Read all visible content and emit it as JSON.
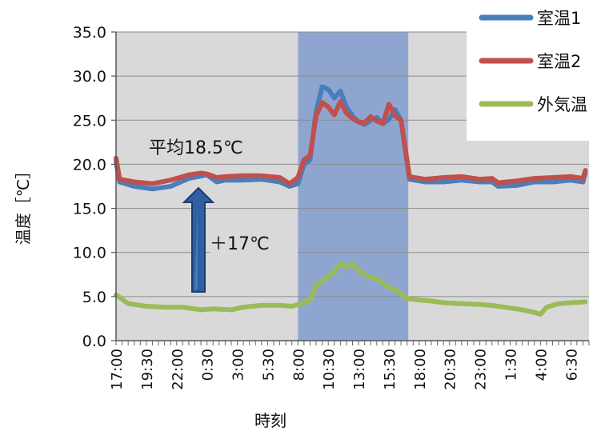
{
  "chart_data": {
    "type": "line",
    "ylabel": "温度［℃］",
    "xlabel": "時刻",
    "ylim": [
      0,
      35
    ],
    "yticks": [
      "0.0",
      "5.0",
      "10.0",
      "15.0",
      "20.0",
      "25.0",
      "30.0",
      "35.0"
    ],
    "grid": true,
    "legend_position": "top-right",
    "x_tick_labels": [
      "17:00",
      "19:30",
      "22:00",
      "0:30",
      "3:00",
      "5:30",
      "8:00",
      "10:30",
      "13:00",
      "15:30",
      "18:00",
      "20:30",
      "23:00",
      "1:30",
      "4:00",
      "6:30"
    ],
    "highlight_band": {
      "from": "8:00",
      "to": "17:00"
    },
    "series": [
      {
        "name": "室温1",
        "color": "#4a7ebb",
        "values": [
          [
            0,
            20.3
          ],
          [
            0.3,
            18
          ],
          [
            1.5,
            17.5
          ],
          [
            3,
            17.2
          ],
          [
            4.5,
            17.5
          ],
          [
            6,
            18.4
          ],
          [
            7.5,
            18.8
          ],
          [
            8.3,
            18.0
          ],
          [
            9,
            18.2
          ],
          [
            10.5,
            18.2
          ],
          [
            12,
            18.3
          ],
          [
            13.5,
            18.0
          ],
          [
            14.3,
            17.5
          ],
          [
            15,
            17.8
          ],
          [
            15.5,
            20
          ],
          [
            16,
            20.5
          ],
          [
            16.5,
            26
          ],
          [
            17,
            28.8
          ],
          [
            17.5,
            28.5
          ],
          [
            18,
            27.5
          ],
          [
            18.5,
            28.3
          ],
          [
            19,
            26.5
          ],
          [
            19.5,
            25.5
          ],
          [
            20,
            24.8
          ],
          [
            20.5,
            24.5
          ],
          [
            21,
            25
          ],
          [
            21.5,
            25.3
          ],
          [
            22,
            24.6
          ],
          [
            22.5,
            25.1
          ],
          [
            23,
            26.2
          ],
          [
            23.5,
            25
          ],
          [
            24.2,
            18.3
          ],
          [
            25.5,
            18
          ],
          [
            27,
            18
          ],
          [
            28.5,
            18.2
          ],
          [
            30,
            18
          ],
          [
            31,
            18
          ],
          [
            31.5,
            17.5
          ],
          [
            33,
            17.6
          ],
          [
            34.5,
            18
          ],
          [
            36,
            18
          ],
          [
            37.5,
            18.2
          ],
          [
            38.5,
            18
          ],
          [
            38.7,
            19
          ]
        ]
      },
      {
        "name": "室温2",
        "color": "#c0504d",
        "values": [
          [
            0,
            20.7
          ],
          [
            0.3,
            18.3
          ],
          [
            1.5,
            18
          ],
          [
            3,
            17.8
          ],
          [
            4.5,
            18.2
          ],
          [
            6,
            18.8
          ],
          [
            7,
            19
          ],
          [
            7.5,
            18.9
          ],
          [
            8.3,
            18.5
          ],
          [
            9,
            18.6
          ],
          [
            10.5,
            18.7
          ],
          [
            12,
            18.7
          ],
          [
            13.5,
            18.5
          ],
          [
            14.3,
            17.8
          ],
          [
            15,
            18.5
          ],
          [
            15.5,
            20.5
          ],
          [
            16,
            21
          ],
          [
            16.5,
            25.5
          ],
          [
            17,
            27
          ],
          [
            17.5,
            26.5
          ],
          [
            18,
            25.6
          ],
          [
            18.5,
            27.1
          ],
          [
            19,
            25.8
          ],
          [
            19.5,
            25.2
          ],
          [
            20,
            24.8
          ],
          [
            20.5,
            24.7
          ],
          [
            21,
            25.4
          ],
          [
            21.5,
            24.9
          ],
          [
            22,
            24.6
          ],
          [
            22.5,
            26.8
          ],
          [
            23,
            25.5
          ],
          [
            23.5,
            25
          ],
          [
            24.2,
            18.6
          ],
          [
            25.5,
            18.3
          ],
          [
            27,
            18.5
          ],
          [
            28.5,
            18.6
          ],
          [
            30,
            18.3
          ],
          [
            31,
            18.4
          ],
          [
            31.5,
            17.9
          ],
          [
            33,
            18.1
          ],
          [
            34.5,
            18.4
          ],
          [
            36,
            18.5
          ],
          [
            37.5,
            18.6
          ],
          [
            38.5,
            18.4
          ],
          [
            38.7,
            19.3
          ]
        ]
      },
      {
        "name": "外気温",
        "color": "#9bbb59",
        "values": [
          [
            0,
            5.2
          ],
          [
            1,
            4.2
          ],
          [
            2.5,
            3.9
          ],
          [
            4,
            3.8
          ],
          [
            5.5,
            3.8
          ],
          [
            7,
            3.5
          ],
          [
            8,
            3.6
          ],
          [
            9.5,
            3.5
          ],
          [
            10.5,
            3.8
          ],
          [
            12,
            4.0
          ],
          [
            13.5,
            4.0
          ],
          [
            14.5,
            3.9
          ],
          [
            15.3,
            4.2
          ],
          [
            16,
            4.6
          ],
          [
            16.5,
            6.3
          ],
          [
            17,
            6.8
          ],
          [
            17.5,
            7.3
          ],
          [
            18,
            7.8
          ],
          [
            18.5,
            8.7
          ],
          [
            19,
            8.4
          ],
          [
            19.5,
            8.7
          ],
          [
            20,
            8.0
          ],
          [
            20.5,
            7.4
          ],
          [
            21,
            7.2
          ],
          [
            21.5,
            7.0
          ],
          [
            22,
            6.5
          ],
          [
            22.5,
            6.0
          ],
          [
            23,
            5.8
          ],
          [
            23.5,
            5.3
          ],
          [
            24,
            4.8
          ],
          [
            25,
            4.6
          ],
          [
            26,
            4.5
          ],
          [
            27,
            4.3
          ],
          [
            28.5,
            4.2
          ],
          [
            30,
            4.1
          ],
          [
            31,
            4.0
          ],
          [
            31.5,
            3.9
          ],
          [
            32.5,
            3.7
          ],
          [
            33.5,
            3.5
          ],
          [
            34.5,
            3.2
          ],
          [
            35,
            3.0
          ],
          [
            35.5,
            3.8
          ],
          [
            36.5,
            4.2
          ],
          [
            37.5,
            4.3
          ],
          [
            38.7,
            4.4
          ]
        ]
      }
    ],
    "annotations": [
      {
        "text": "平均18.5℃"
      },
      {
        "text": "＋17℃"
      }
    ]
  }
}
